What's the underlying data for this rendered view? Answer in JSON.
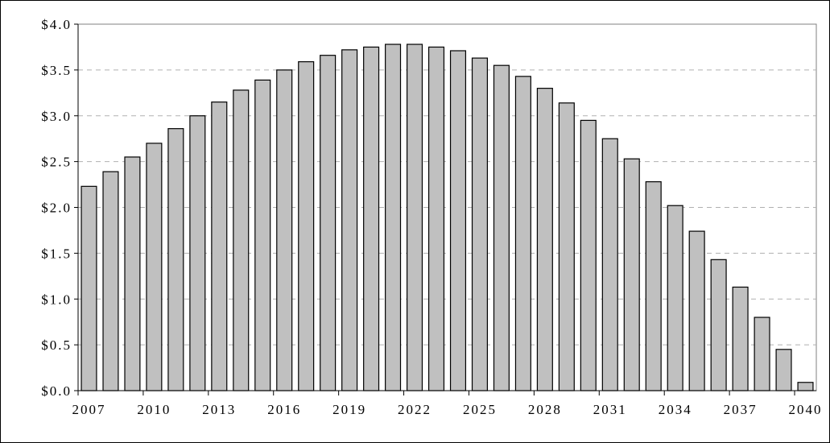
{
  "chart_data": {
    "type": "bar",
    "title": "",
    "xlabel": "",
    "ylabel": "",
    "categories": [
      "2007",
      "2008",
      "2009",
      "2010",
      "2011",
      "2012",
      "2013",
      "2014",
      "2015",
      "2016",
      "2017",
      "2018",
      "2019",
      "2020",
      "2021",
      "2022",
      "2023",
      "2024",
      "2025",
      "2026",
      "2027",
      "2028",
      "2029",
      "2030",
      "2031",
      "2032",
      "2033",
      "2034",
      "2035",
      "2036",
      "2037",
      "2038",
      "2039",
      "2040"
    ],
    "values": [
      2.23,
      2.39,
      2.55,
      2.7,
      2.86,
      3.0,
      3.15,
      3.28,
      3.39,
      3.5,
      3.59,
      3.66,
      3.72,
      3.75,
      3.78,
      3.78,
      3.75,
      3.71,
      3.63,
      3.55,
      3.43,
      3.3,
      3.14,
      2.95,
      2.75,
      2.53,
      2.28,
      2.02,
      1.74,
      1.43,
      1.13,
      0.8,
      0.45,
      0.09
    ],
    "ylim": [
      0,
      4.0
    ],
    "y_ticks": [
      "$0.0",
      "$0.5",
      "$1.0",
      "$1.5",
      "$2.0",
      "$2.5",
      "$3.0",
      "$3.5",
      "$4.0"
    ],
    "x_tick_labels": [
      "2007",
      "2010",
      "2013",
      "2016",
      "2019",
      "2022",
      "2025",
      "2028",
      "2031",
      "2034",
      "2037",
      "2040"
    ],
    "grid": true,
    "legend": "none",
    "colors": {
      "bar_fill": "#c0c0c0",
      "bar_stroke": "#000000",
      "grid": "#b0b0b0"
    }
  }
}
